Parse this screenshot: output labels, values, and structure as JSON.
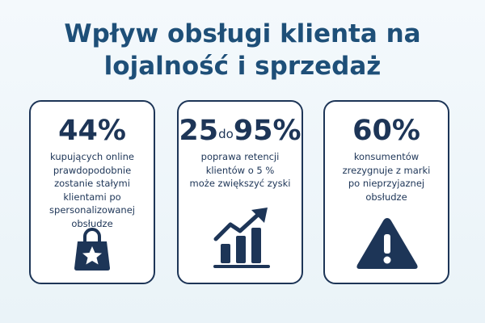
{
  "title": {
    "line1": "Wpływ obsługi klienta na",
    "line2": "lojalność i sprzedaż"
  },
  "cards": [
    {
      "stat": "44%",
      "lines": [
        "kupujących online",
        "prawdopodobnie",
        "zostanie stałymi",
        "klientami po",
        "spersonalizowanej",
        "obsłudze"
      ],
      "icon": "shopping-bag-star-icon"
    },
    {
      "stat_from": "25",
      "stat_joiner": "do",
      "stat_to": "95%",
      "lines": [
        "poprawa retencji",
        "klientów o 5 %",
        "może zwiększyć zyski"
      ],
      "icon": "growth-chart-arrow-icon"
    },
    {
      "stat": "60%",
      "lines": [
        "konsumentów",
        "zrezygnuje z marki",
        "po nieprzyjaznej",
        "obsłudze"
      ],
      "icon": "warning-triangle-icon"
    }
  ],
  "colors": {
    "title": "#1e4f78",
    "navy": "#1d3557",
    "card_background": "#ffffff",
    "page_background": "#eef5fa"
  }
}
